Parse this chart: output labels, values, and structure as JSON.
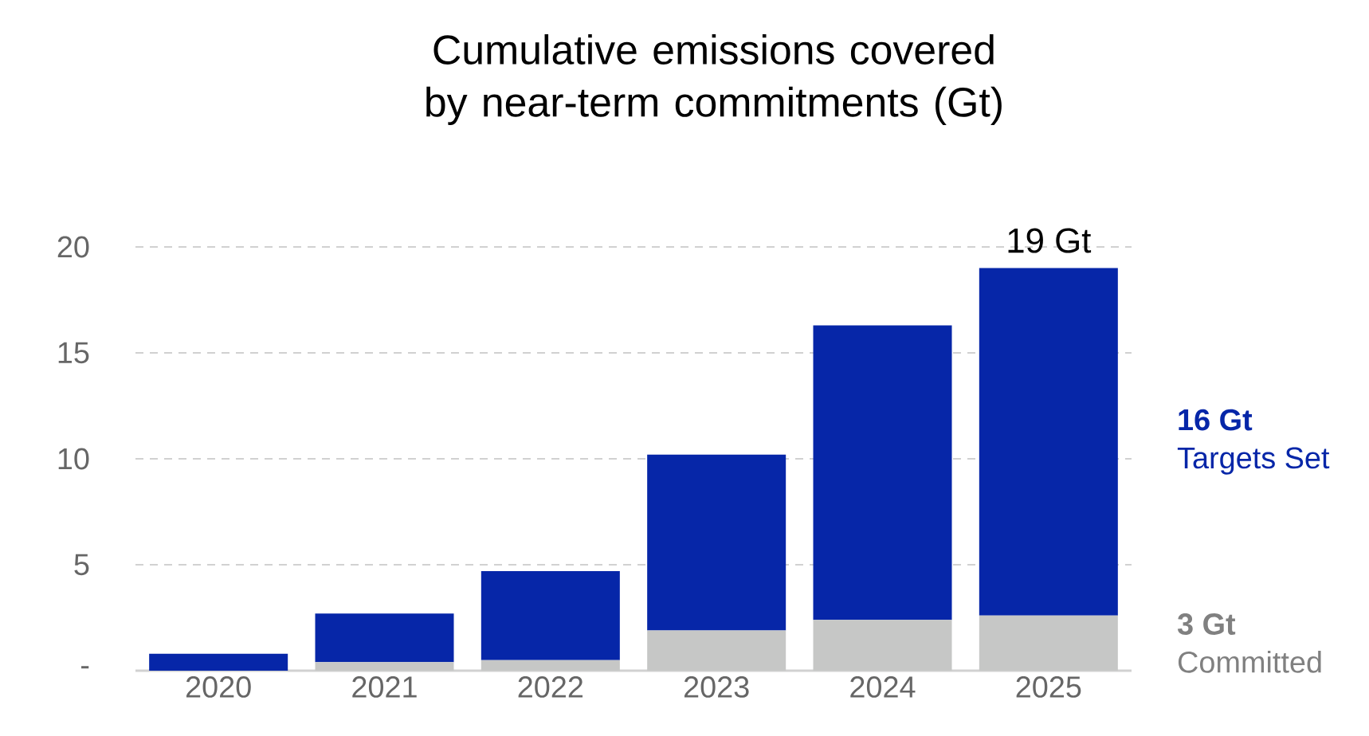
{
  "chart_data": {
    "type": "bar",
    "title": "Cumulative emissions covered by near-term commitments (Gt)",
    "categories": [
      "2020",
      "2021",
      "2022",
      "2023",
      "2024",
      "2025"
    ],
    "stacked": true,
    "series": [
      {
        "name": "Committed",
        "color": "#c6c7c6",
        "values": [
          null,
          0.4,
          0.5,
          1.9,
          2.4,
          2.6
        ]
      },
      {
        "name": "Targets Set",
        "color": "#0626a8",
        "values": [
          0.8,
          2.3,
          4.2,
          8.3,
          13.9,
          16.4
        ]
      }
    ],
    "annotations": [
      "3 Gt",
      "16 Gt"
    ],
    "totals": [
      null,
      null,
      null,
      null,
      null,
      "19 Gt"
    ],
    "ylim": [
      0,
      20
    ],
    "yticks": [
      {
        "value": 0,
        "label": "-"
      },
      5,
      10,
      15,
      20
    ],
    "grid": "y"
  }
}
